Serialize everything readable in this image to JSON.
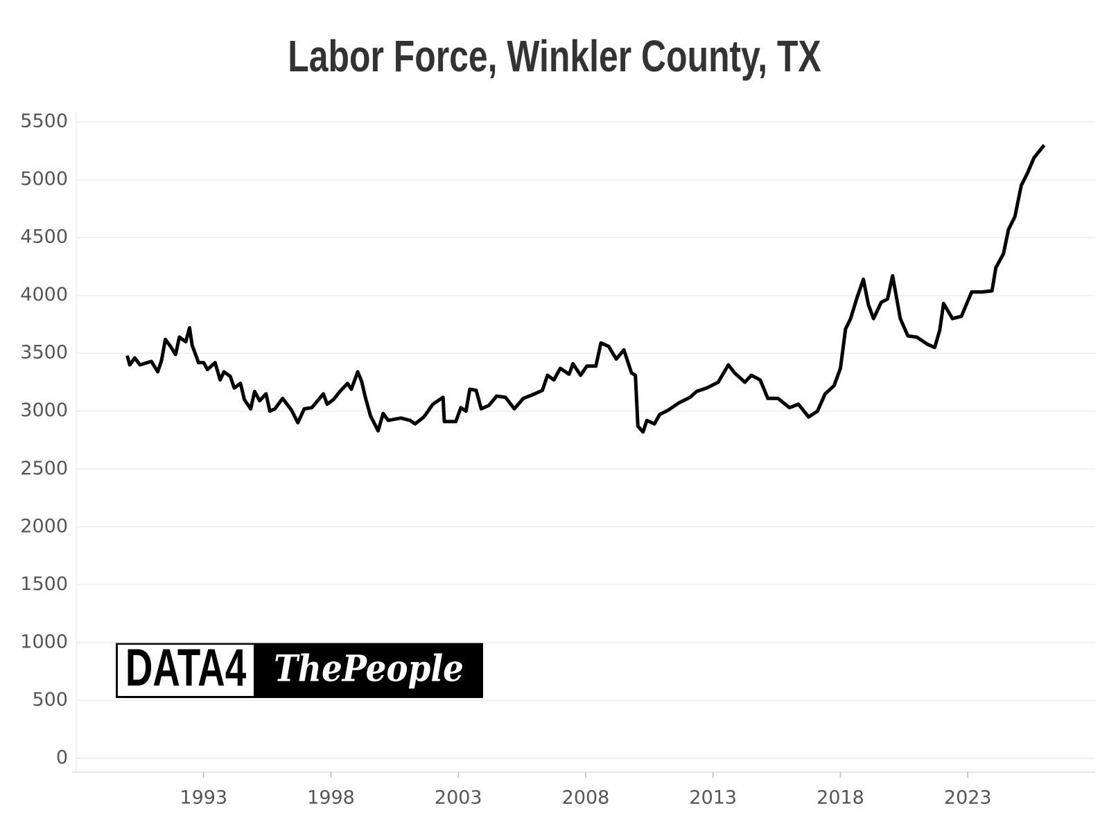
{
  "chart_data": {
    "type": "line",
    "title": "Labor Force, Winkler County, TX",
    "logo": [
      "DATA4",
      "ThePeople"
    ],
    "x": [
      1990.0,
      1990.1,
      1990.3,
      1990.5,
      1990.95,
      1991.2,
      1991.35,
      1991.5,
      1991.7,
      1991.9,
      1992.05,
      1992.3,
      1992.45,
      1992.55,
      1992.8,
      1993.0,
      1993.15,
      1993.45,
      1993.65,
      1993.8,
      1994.05,
      1994.2,
      1994.45,
      1994.6,
      1994.85,
      1995.0,
      1995.2,
      1995.45,
      1995.6,
      1995.8,
      1996.1,
      1996.45,
      1996.7,
      1996.95,
      1997.25,
      1997.7,
      1997.85,
      1998.1,
      1998.35,
      1998.65,
      1998.8,
      1999.05,
      1999.2,
      1999.35,
      1999.55,
      1999.85,
      2000.05,
      2000.25,
      2000.75,
      2001.1,
      2001.3,
      2001.65,
      2002.0,
      2002.4,
      2002.45,
      2002.9,
      2003.1,
      2003.3,
      2003.45,
      2003.7,
      2003.9,
      2004.2,
      2004.5,
      2004.85,
      2005.2,
      2005.55,
      2006.0,
      2006.3,
      2006.5,
      2006.75,
      2007.0,
      2007.35,
      2007.5,
      2007.8,
      2008.05,
      2008.4,
      2008.6,
      2008.9,
      2009.2,
      2009.5,
      2009.8,
      2009.95,
      2010.05,
      2010.25,
      2010.4,
      2010.7,
      2010.9,
      2011.25,
      2011.65,
      2012.1,
      2012.35,
      2012.75,
      2013.2,
      2013.6,
      2013.85,
      2014.25,
      2014.5,
      2014.85,
      2015.15,
      2015.55,
      2016.0,
      2016.35,
      2016.75,
      2017.1,
      2017.4,
      2017.75,
      2018.0,
      2018.2,
      2018.4,
      2018.65,
      2018.9,
      2019.1,
      2019.3,
      2019.6,
      2019.85,
      2020.05,
      2020.35,
      2020.65,
      2021.0,
      2021.4,
      2021.7,
      2021.9,
      2022.05,
      2022.4,
      2022.75,
      2023.15,
      2023.55,
      2023.95,
      2024.1,
      2024.4,
      2024.6,
      2024.85,
      2025.1,
      2025.35,
      2025.6,
      2026.0
    ],
    "series": [
      {
        "name": "Labor Force",
        "color": "#000000",
        "values": [
          3480,
          3400,
          3460,
          3400,
          3430,
          3340,
          3440,
          3620,
          3560,
          3490,
          3640,
          3600,
          3720,
          3570,
          3420,
          3420,
          3360,
          3420,
          3270,
          3340,
          3300,
          3200,
          3240,
          3100,
          3020,
          3170,
          3090,
          3150,
          3000,
          3020,
          3110,
          3010,
          2900,
          3020,
          3030,
          3150,
          3060,
          3100,
          3170,
          3240,
          3190,
          3340,
          3260,
          3120,
          2960,
          2830,
          2980,
          2920,
          2940,
          2920,
          2890,
          2950,
          3060,
          3120,
          2910,
          2910,
          3030,
          3000,
          3190,
          3180,
          3020,
          3050,
          3130,
          3120,
          3020,
          3110,
          3150,
          3180,
          3310,
          3270,
          3370,
          3320,
          3410,
          3310,
          3390,
          3390,
          3590,
          3560,
          3450,
          3530,
          3330,
          3310,
          2870,
          2820,
          2920,
          2890,
          2970,
          3010,
          3070,
          3120,
          3170,
          3200,
          3250,
          3400,
          3330,
          3250,
          3310,
          3270,
          3110,
          3110,
          3030,
          3060,
          2950,
          3000,
          3150,
          3220,
          3370,
          3710,
          3800,
          3980,
          4140,
          3920,
          3800,
          3940,
          3970,
          4170,
          3800,
          3650,
          3640,
          3580,
          3550,
          3700,
          3930,
          3800,
          3820,
          4030,
          4030,
          4040,
          4240,
          4360,
          4570,
          4680,
          4950,
          5060,
          5190,
          5300
        ]
      }
    ],
    "xlim": [
      1988,
      2028
    ],
    "xticks": [
      1993,
      1998,
      2003,
      2008,
      2013,
      2018,
      2023
    ],
    "ylim": [
      -120,
      5590
    ],
    "yticks": [
      0,
      500,
      1000,
      1500,
      2000,
      2500,
      3000,
      3500,
      4000,
      4500,
      5000,
      5500
    ],
    "grid": true
  }
}
